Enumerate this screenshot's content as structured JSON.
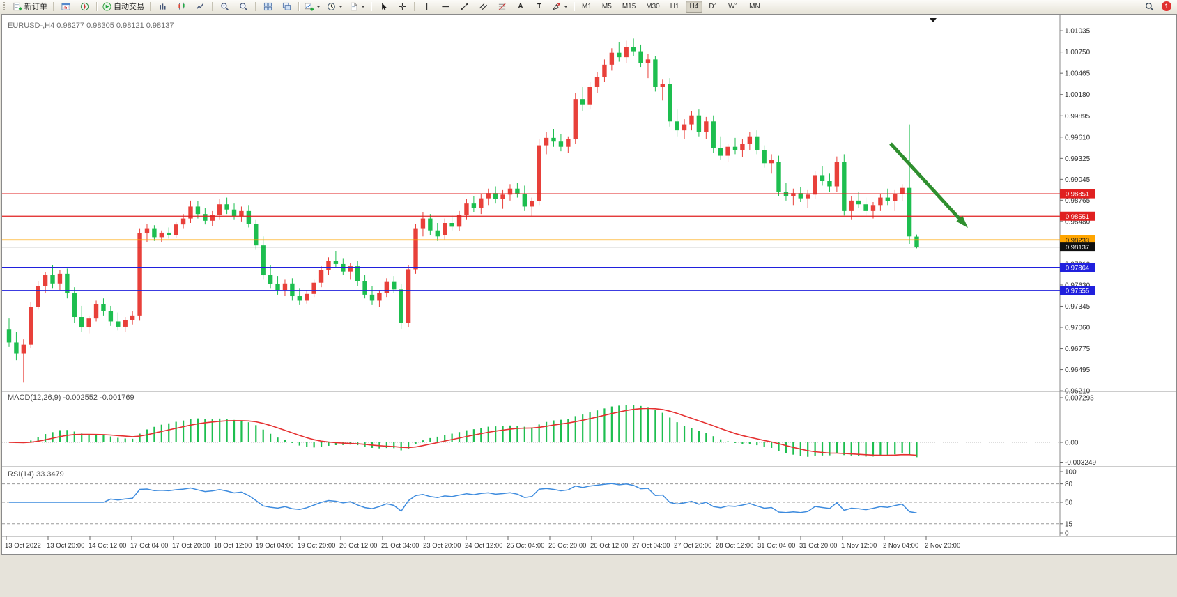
{
  "toolbar": {
    "items": [
      {
        "name": "new-order-button",
        "icon": "new-order",
        "label": "新订单"
      },
      {
        "sep": true
      },
      {
        "name": "market-watch-button",
        "icon": "market-watch"
      },
      {
        "name": "navigator-button",
        "icon": "navigator"
      },
      {
        "sep": true
      },
      {
        "name": "autotrading-button",
        "icon": "autotrading",
        "label": "自动交易"
      },
      {
        "sep": true
      },
      {
        "name": "bar-chart-button",
        "icon": "bars"
      },
      {
        "name": "candlestick-chart-button",
        "icon": "candles"
      },
      {
        "name": "line-chart-button",
        "icon": "line"
      },
      {
        "sep": true
      },
      {
        "name": "zoom-in-button",
        "icon": "zoom-in"
      },
      {
        "name": "zoom-out-button",
        "icon": "zoom-out"
      },
      {
        "sep": true
      },
      {
        "name": "tile-windows-button",
        "icon": "tile"
      },
      {
        "name": "cascade-windows-button",
        "icon": "arrange"
      },
      {
        "sep": true
      },
      {
        "name": "new-chart-button",
        "icon": "plus-chart",
        "dropdown": true
      },
      {
        "name": "periods-button",
        "icon": "clock",
        "dropdown": true
      },
      {
        "name": "templates-button",
        "icon": "template",
        "dropdown": true
      },
      {
        "sep": true
      },
      {
        "name": "cursor-button",
        "icon": "cursor"
      },
      {
        "name": "crosshair-button",
        "icon": "crosshair"
      },
      {
        "sep": true
      },
      {
        "name": "vertical-line-button",
        "icon": "vline"
      },
      {
        "name": "horizontal-line-button",
        "icon": "hline"
      },
      {
        "name": "trendline-button",
        "icon": "trendline"
      },
      {
        "name": "channel-button",
        "icon": "channel"
      },
      {
        "name": "fibonacci-button",
        "icon": "fibo"
      },
      {
        "name": "text-tool-button",
        "glyph": "A"
      },
      {
        "name": "text-label-button",
        "glyph": "T"
      },
      {
        "name": "arrows-tool-button",
        "icon": "shapes",
        "dropdown": true
      },
      {
        "sep": true
      },
      {
        "timeframes": true
      },
      {
        "spacer": true
      },
      {
        "name": "search-button",
        "icon": "search"
      },
      {
        "name": "notification-badge",
        "badge": "1"
      }
    ],
    "timeframes": [
      "M1",
      "M5",
      "M15",
      "M30",
      "H1",
      "H4",
      "D1",
      "W1",
      "MN"
    ],
    "active_timeframe": "H4",
    "notification_count": "1"
  },
  "chart": {
    "title_line": "EURUSD-,H4  0.98277 0.98305 0.98121 0.98137",
    "symbol": "EURUSD-",
    "period": "H4",
    "ohlc": {
      "open": "0.98277",
      "high": "0.98305",
      "low": "0.98121",
      "close": "0.98137"
    },
    "price_axis": [
      "1.01035",
      "1.00750",
      "1.00465",
      "1.00180",
      "0.99895",
      "0.99610",
      "0.99325",
      "0.99045",
      "0.98765",
      "0.98480",
      "0.98195",
      "0.97910",
      "0.97630",
      "0.97345",
      "0.97060",
      "0.96775",
      "0.96495",
      "0.96210"
    ],
    "time_axis": [
      "13 Oct 2022",
      "13 Oct 20:00",
      "14 Oct 12:00",
      "17 Oct 04:00",
      "17 Oct 20:00",
      "18 Oct 12:00",
      "19 Oct 04:00",
      "19 Oct 20:00",
      "20 Oct 12:00",
      "21 Oct 04:00",
      "23 Oct 20:00",
      "24 Oct 12:00",
      "25 Oct 04:00",
      "25 Oct 20:00",
      "26 Oct 12:00",
      "27 Oct 04:00",
      "27 Oct 20:00",
      "28 Oct 12:00",
      "31 Oct 04:00",
      "31 Oct 20:00",
      "1 Nov 12:00",
      "2 Nov 04:00",
      "2 Nov 20:00"
    ],
    "levels": [
      {
        "value": "0.98851",
        "color": "#E02020",
        "width": 1.2,
        "badge_bg": "#E02020",
        "badge_fg": "#FFFFFF"
      },
      {
        "value": "0.98551",
        "color": "#E02020",
        "width": 1.2,
        "badge_bg": "#E02020",
        "badge_fg": "#FFFFFF"
      },
      {
        "value": "0.98233",
        "color": "#FFA500",
        "width": 1.6,
        "badge_bg": "#FFA500",
        "badge_fg": "#1A1A1A"
      },
      {
        "value": "0.97864",
        "color": "#2020DD",
        "width": 1.8,
        "badge_bg": "#2020DD",
        "badge_fg": "#FFFFFF"
      },
      {
        "value": "0.97555",
        "color": "#2020DD",
        "width": 1.8,
        "badge_bg": "#2020DD",
        "badge_fg": "#FFFFFF"
      }
    ],
    "current_price": {
      "value": "0.98137",
      "line_color": "#444444",
      "badge_bg": "#101010",
      "badge_fg": "#FFFFFF"
    },
    "annotation": {
      "type": "down-right-arrow",
      "color": "#2F8F2F"
    }
  },
  "indicators": {
    "macd": {
      "label_line": "MACD(12,26,9) -0.002552 -0.001769",
      "axis": [
        "0.007293",
        "0.00",
        "-0.003249"
      ]
    },
    "rsi": {
      "label_line": "RSI(14) 33.3479",
      "axis": [
        "100",
        "80",
        "50",
        "15",
        "0"
      ],
      "levels": [
        80,
        50,
        15
      ]
    }
  },
  "chart_data": {
    "type": "candlestick",
    "symbol": "EURUSD",
    "timeframe": "H4",
    "title": "EURUSD-,H4",
    "bull_color": "#E8403A",
    "bear_color": "#1DBE4F",
    "price_range": [
      0.9621,
      1.01035
    ],
    "indicator_settings": {
      "macd": [
        12,
        26,
        9
      ],
      "rsi": [
        14
      ]
    },
    "candles": [
      [
        0.9703,
        0.9718,
        0.968,
        0.9686
      ],
      [
        0.9686,
        0.97,
        0.9662,
        0.9671
      ],
      [
        0.9671,
        0.969,
        0.9632,
        0.9683
      ],
      [
        0.9683,
        0.974,
        0.9678,
        0.9734
      ],
      [
        0.9734,
        0.9768,
        0.973,
        0.9762
      ],
      [
        0.9762,
        0.978,
        0.9752,
        0.9776
      ],
      [
        0.9776,
        0.979,
        0.9758,
        0.9765
      ],
      [
        0.9765,
        0.9783,
        0.9755,
        0.9778
      ],
      [
        0.9778,
        0.9785,
        0.9745,
        0.9752
      ],
      [
        0.9752,
        0.976,
        0.9712,
        0.972
      ],
      [
        0.972,
        0.9735,
        0.97,
        0.9706
      ],
      [
        0.9706,
        0.9722,
        0.9698,
        0.9718
      ],
      [
        0.9718,
        0.9742,
        0.9714,
        0.9737
      ],
      [
        0.9737,
        0.9745,
        0.9722,
        0.9728
      ],
      [
        0.9728,
        0.9735,
        0.9708,
        0.9714
      ],
      [
        0.9714,
        0.9726,
        0.9702,
        0.9707
      ],
      [
        0.9707,
        0.972,
        0.97,
        0.9716
      ],
      [
        0.9716,
        0.9728,
        0.971,
        0.9722
      ],
      [
        0.9722,
        0.9838,
        0.9715,
        0.9832
      ],
      [
        0.9832,
        0.9845,
        0.982,
        0.9838
      ],
      [
        0.9838,
        0.9843,
        0.9822,
        0.9827
      ],
      [
        0.9827,
        0.9836,
        0.982,
        0.9833
      ],
      [
        0.9833,
        0.984,
        0.9825,
        0.983
      ],
      [
        0.983,
        0.9848,
        0.9826,
        0.9844
      ],
      [
        0.9844,
        0.9858,
        0.9838,
        0.9852
      ],
      [
        0.9852,
        0.9876,
        0.9846,
        0.9868
      ],
      [
        0.9868,
        0.9875,
        0.9852,
        0.9858
      ],
      [
        0.9858,
        0.9866,
        0.9844,
        0.9849
      ],
      [
        0.9849,
        0.9862,
        0.9842,
        0.9857
      ],
      [
        0.9857,
        0.9878,
        0.985,
        0.9871
      ],
      [
        0.9871,
        0.988,
        0.9858,
        0.9864
      ],
      [
        0.9864,
        0.9872,
        0.985,
        0.9855
      ],
      [
        0.9855,
        0.9868,
        0.9848,
        0.9862
      ],
      [
        0.9862,
        0.987,
        0.984,
        0.9845
      ],
      [
        0.9845,
        0.985,
        0.981,
        0.9816
      ],
      [
        0.9816,
        0.9828,
        0.977,
        0.9776
      ],
      [
        0.9776,
        0.979,
        0.9758,
        0.9764
      ],
      [
        0.9764,
        0.9775,
        0.975,
        0.9756
      ],
      [
        0.9756,
        0.977,
        0.9748,
        0.9765
      ],
      [
        0.9765,
        0.9772,
        0.9742,
        0.9748
      ],
      [
        0.9748,
        0.9758,
        0.9736,
        0.9742
      ],
      [
        0.9742,
        0.9755,
        0.9738,
        0.9751
      ],
      [
        0.9751,
        0.977,
        0.9746,
        0.9766
      ],
      [
        0.9766,
        0.9788,
        0.976,
        0.9783
      ],
      [
        0.9783,
        0.98,
        0.9776,
        0.9795
      ],
      [
        0.9795,
        0.9808,
        0.9786,
        0.9791
      ],
      [
        0.9791,
        0.9798,
        0.9776,
        0.9781
      ],
      [
        0.9781,
        0.9792,
        0.977,
        0.9788
      ],
      [
        0.9788,
        0.9795,
        0.9762,
        0.9768
      ],
      [
        0.9768,
        0.9776,
        0.9745,
        0.975
      ],
      [
        0.975,
        0.9762,
        0.9736,
        0.9742
      ],
      [
        0.9742,
        0.9756,
        0.9734,
        0.9752
      ],
      [
        0.9752,
        0.9772,
        0.9746,
        0.9767
      ],
      [
        0.9767,
        0.9775,
        0.9752,
        0.9757
      ],
      [
        0.9757,
        0.9764,
        0.9704,
        0.9712
      ],
      [
        0.9712,
        0.979,
        0.9706,
        0.9784
      ],
      [
        0.9784,
        0.9845,
        0.9778,
        0.9838
      ],
      [
        0.9838,
        0.986,
        0.9828,
        0.9852
      ],
      [
        0.9852,
        0.9858,
        0.983,
        0.9836
      ],
      [
        0.9836,
        0.9846,
        0.9822,
        0.9828
      ],
      [
        0.983,
        0.9852,
        0.9824,
        0.9846
      ],
      [
        0.9846,
        0.9856,
        0.9836,
        0.9841
      ],
      [
        0.9841,
        0.9862,
        0.9835,
        0.9857
      ],
      [
        0.9857,
        0.9878,
        0.985,
        0.9872
      ],
      [
        0.9872,
        0.9882,
        0.986,
        0.9866
      ],
      [
        0.9866,
        0.9885,
        0.9858,
        0.9879
      ],
      [
        0.9879,
        0.9892,
        0.987,
        0.9886
      ],
      [
        0.9886,
        0.9895,
        0.9872,
        0.9878
      ],
      [
        0.9878,
        0.989,
        0.9865,
        0.9884
      ],
      [
        0.9884,
        0.9898,
        0.9876,
        0.9892
      ],
      [
        0.9892,
        0.99,
        0.988,
        0.9885
      ],
      [
        0.9885,
        0.9896,
        0.9862,
        0.9868
      ],
      [
        0.9868,
        0.988,
        0.9855,
        0.9875
      ],
      [
        0.9875,
        0.9958,
        0.987,
        0.995
      ],
      [
        0.995,
        0.9968,
        0.9938,
        0.996
      ],
      [
        0.996,
        0.9972,
        0.9948,
        0.9955
      ],
      [
        0.9955,
        0.9965,
        0.9942,
        0.9948
      ],
      [
        0.9948,
        0.9962,
        0.994,
        0.9958
      ],
      [
        0.9958,
        1.002,
        0.9952,
        1.0012
      ],
      [
        1.0012,
        1.0028,
        0.9996,
        1.0004
      ],
      [
        1.0004,
        1.0035,
        0.9998,
        1.0028
      ],
      [
        1.0028,
        1.0048,
        1.002,
        1.0042
      ],
      [
        1.0042,
        1.0065,
        1.0035,
        1.0058
      ],
      [
        1.0058,
        1.008,
        1.005,
        1.0074
      ],
      [
        1.0074,
        1.0088,
        1.0062,
        1.0068
      ],
      [
        1.0068,
        1.009,
        1.006,
        1.0082
      ],
      [
        1.0082,
        1.0093,
        1.007,
        1.0076
      ],
      [
        1.0076,
        1.0085,
        1.0055,
        1.006
      ],
      [
        1.006,
        1.0072,
        1.004,
        1.0065
      ],
      [
        1.0065,
        1.007,
        1.0022,
        1.0028
      ],
      [
        1.0028,
        1.0038,
        1.001,
        1.0032
      ],
      [
        1.0032,
        1.004,
        0.9975,
        0.9982
      ],
      [
        0.9982,
        0.9998,
        0.9962,
        0.997
      ],
      [
        0.997,
        0.9985,
        0.9958,
        0.9978
      ],
      [
        0.9978,
        0.9996,
        0.997,
        0.999
      ],
      [
        0.999,
        0.9998,
        0.9962,
        0.9968
      ],
      [
        0.9968,
        0.9988,
        0.9958,
        0.9982
      ],
      [
        0.9982,
        0.999,
        0.994,
        0.9946
      ],
      [
        0.9946,
        0.9962,
        0.993,
        0.9936
      ],
      [
        0.9936,
        0.9952,
        0.9928,
        0.9948
      ],
      [
        0.9948,
        0.996,
        0.9938,
        0.9944
      ],
      [
        0.9944,
        0.9958,
        0.9934,
        0.9952
      ],
      [
        0.9952,
        0.9968,
        0.9944,
        0.9962
      ],
      [
        0.9962,
        0.997,
        0.9938,
        0.9944
      ],
      [
        0.9944,
        0.995,
        0.992,
        0.9926
      ],
      [
        0.9926,
        0.9938,
        0.9912,
        0.993
      ],
      [
        0.9928,
        0.9936,
        0.9882,
        0.9888
      ],
      [
        0.9888,
        0.99,
        0.9876,
        0.9882
      ],
      [
        0.9882,
        0.9892,
        0.987,
        0.9886
      ],
      [
        0.9886,
        0.9894,
        0.9874,
        0.9879
      ],
      [
        0.9879,
        0.989,
        0.9866,
        0.9884
      ],
      [
        0.9884,
        0.9916,
        0.9878,
        0.991
      ],
      [
        0.991,
        0.9922,
        0.9896,
        0.9902
      ],
      [
        0.9902,
        0.9912,
        0.9888,
        0.9895
      ],
      [
        0.9895,
        0.9935,
        0.9888,
        0.9928
      ],
      [
        0.9928,
        0.9938,
        0.9856,
        0.9862
      ],
      [
        0.9862,
        0.9882,
        0.985,
        0.9876
      ],
      [
        0.9876,
        0.9888,
        0.9866,
        0.9871
      ],
      [
        0.9871,
        0.988,
        0.9856,
        0.9862
      ],
      [
        0.9862,
        0.9874,
        0.9852,
        0.987
      ],
      [
        0.987,
        0.9885,
        0.9862,
        0.988
      ],
      [
        0.988,
        0.9892,
        0.987,
        0.9875
      ],
      [
        0.9875,
        0.989,
        0.9862,
        0.9885
      ],
      [
        0.9885,
        0.9898,
        0.9875,
        0.9893
      ],
      [
        0.9893,
        0.9978,
        0.9818,
        0.9828
      ],
      [
        0.98277,
        0.98305,
        0.98121,
        0.98137
      ]
    ]
  }
}
